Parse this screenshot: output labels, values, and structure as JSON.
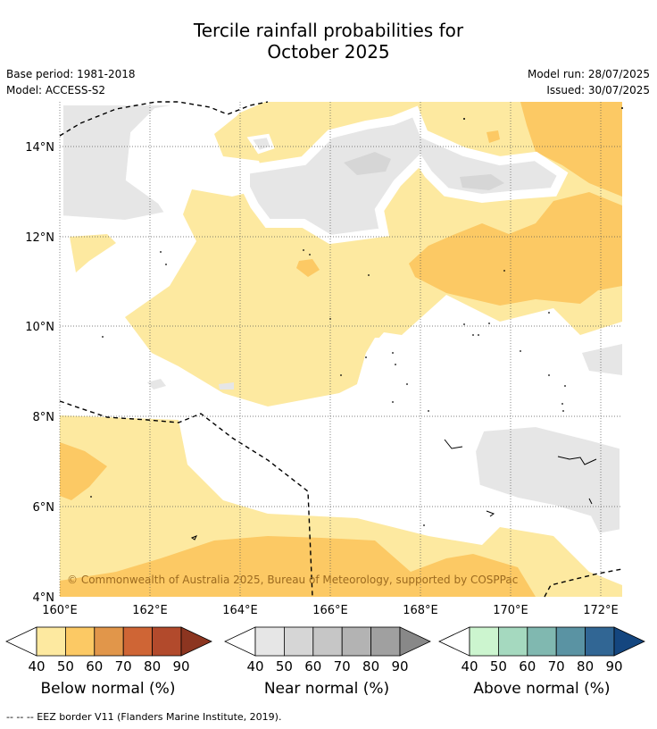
{
  "title_line1": "Tercile rainfall probabilities for",
  "title_line2": "October 2025",
  "meta_left": {
    "base_period": "Base period: 1981-2018",
    "model": "Model: ACCESS-S2"
  },
  "meta_right": {
    "model_run": "Model run: 28/07/2025",
    "issued": "Issued: 30/07/2025"
  },
  "map": {
    "lat_ticks": [
      "14°N",
      "12°N",
      "10°N",
      "8°N",
      "6°N",
      "4°N"
    ],
    "lon_ticks": [
      "160°E",
      "162°E",
      "164°E",
      "166°E",
      "168°E",
      "170°E",
      "172°E"
    ],
    "copyright": "© Commonwealth of Australia 2025, Bureau of Meteorology, supported by COSPPac"
  },
  "legend": {
    "tick_labels": [
      "40",
      "50",
      "60",
      "70",
      "80",
      "90"
    ],
    "below": {
      "title": "Below normal (%)",
      "colors": [
        "#fde9a0",
        "#fcc964",
        "#e1964a",
        "#cf6535",
        "#b24a2c",
        "#8c3520"
      ]
    },
    "near": {
      "title": "Near normal (%)",
      "colors": [
        "#e6e6e6",
        "#d6d6d6",
        "#c6c6c6",
        "#b3b3b3",
        "#a0a0a0",
        "#888888"
      ]
    },
    "above": {
      "title": "Above normal (%)",
      "colors": [
        "#ccf5cf",
        "#a5d9bf",
        "#80b8b0",
        "#5a93a3",
        "#316694",
        "#14467f"
      ]
    }
  },
  "footer": "--  --  -- EEZ border V11 (Flanders Marine Institute, 2019)."
}
